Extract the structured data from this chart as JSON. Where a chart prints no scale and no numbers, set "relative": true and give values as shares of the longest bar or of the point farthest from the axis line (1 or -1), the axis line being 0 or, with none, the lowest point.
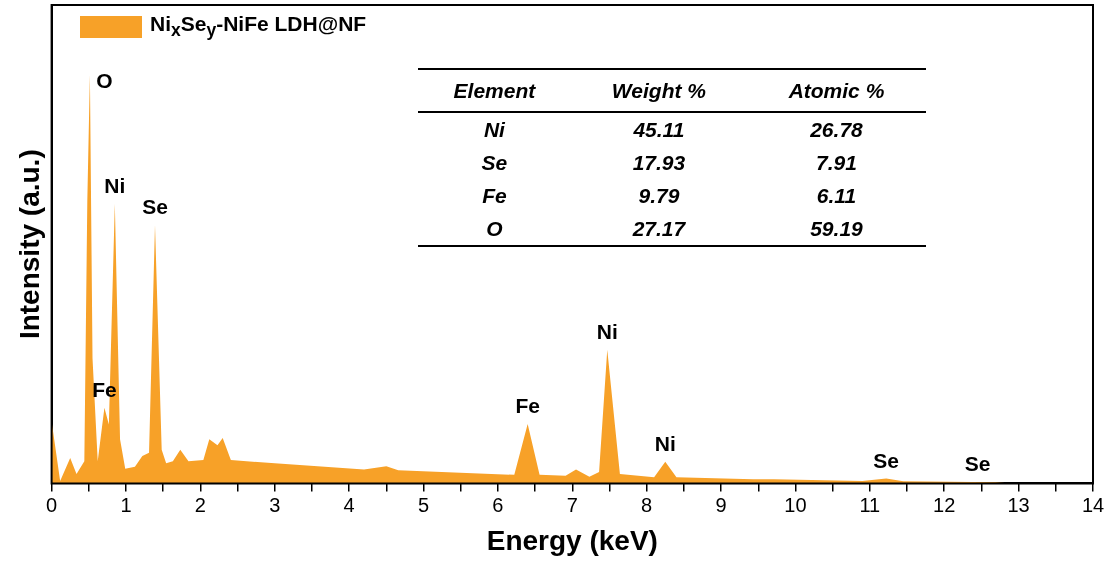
{
  "chart_data": {
    "type": "area",
    "relative": true,
    "xlabel": "Energy (keV)",
    "ylabel": "Intensity (a.u.)",
    "legend": "top left",
    "grid": false,
    "xlim": [
      0,
      14
    ],
    "xticks": [
      0,
      {
        "value": 0.5,
        "label": null
      },
      1,
      {
        "value": 1.5,
        "label": null
      },
      2,
      {
        "value": 2.5,
        "label": null
      },
      3,
      {
        "value": 3.5,
        "label": null
      },
      4,
      {
        "value": 4.5,
        "label": null
      },
      5,
      {
        "value": 5.5,
        "label": null
      },
      6,
      {
        "value": 6.5,
        "label": null
      },
      7,
      {
        "value": 7.5,
        "label": null
      },
      8,
      {
        "value": 8.5,
        "label": null
      },
      9,
      {
        "value": 9.5,
        "label": null
      },
      10,
      {
        "value": 10.5,
        "label": null
      },
      11,
      {
        "value": 11.5,
        "label": null
      },
      12,
      {
        "value": 12.5,
        "label": null
      },
      13,
      {
        "value": 13.5,
        "label": null
      },
      14
    ],
    "series": [
      {
        "name": "Ni$_{x}$Se$_{y}$-NiFe LDH@NF",
        "color": "#f7a128",
        "x": [
          0,
          0.115,
          0.25,
          0.335,
          0.44,
          0.48,
          0.515,
          0.55,
          0.62,
          0.71,
          0.77,
          0.85,
          0.92,
          0.99,
          1.12,
          1.22,
          1.31,
          1.39,
          1.48,
          1.54,
          1.63,
          1.73,
          1.84,
          2.04,
          2.12,
          2.23,
          2.3,
          2.41,
          3.0,
          4.2,
          4.5,
          4.66,
          6.22,
          6.4,
          6.56,
          6.91,
          7.05,
          7.23,
          7.36,
          7.47,
          7.64,
          8.1,
          8.25,
          8.4,
          9.43,
          9.71,
          10.9,
          11.22,
          11.45,
          12.69,
          12.9,
          14
        ],
        "values": [
          0.152,
          0.006,
          0.062,
          0.023,
          0.054,
          0.69,
          1,
          0.306,
          0.054,
          0.185,
          0.144,
          0.684,
          0.108,
          0.036,
          0.041,
          0.067,
          0.075,
          0.632,
          0.082,
          0.049,
          0.054,
          0.082,
          0.054,
          0.057,
          0.108,
          0.093,
          0.111,
          0.057,
          0.049,
          0.034,
          0.042,
          0.032,
          0.021,
          0.145,
          0.021,
          0.019,
          0.034,
          0.016,
          0.028,
          0.327,
          0.023,
          0.015,
          0.053,
          0.015,
          0.01,
          0.01,
          0.006,
          0.012,
          0.005,
          0.003,
          0,
          0
        ]
      }
    ],
    "annotations": [
      {
        "text": "O",
        "x": 0.52,
        "y": 1
      },
      {
        "text": "Ni",
        "x": 0.85,
        "y": 0.684
      },
      {
        "text": "Se",
        "x": 1.39,
        "y": 0.632
      },
      {
        "text": "Fe",
        "x": 0.71,
        "y": 0.185
      },
      {
        "text": "Fe",
        "x": 6.4,
        "y": 0.145
      },
      {
        "text": "Ni",
        "x": 7.47,
        "y": 0.327
      },
      {
        "text": "Ni",
        "x": 8.25,
        "y": 0.053
      },
      {
        "text": "Se",
        "x": 11.22,
        "y": 0.012
      },
      {
        "text": "Se",
        "x": 12.45,
        "y": 0.003
      },
      "Element",
      "Weight %",
      "Atomic %",
      "Ni",
      "45.11",
      "26.78",
      "Se",
      "17.93",
      "7.91",
      "Fe",
      "9.79",
      "6.11",
      "O",
      "27.17",
      "59.19"
    ]
  }
}
